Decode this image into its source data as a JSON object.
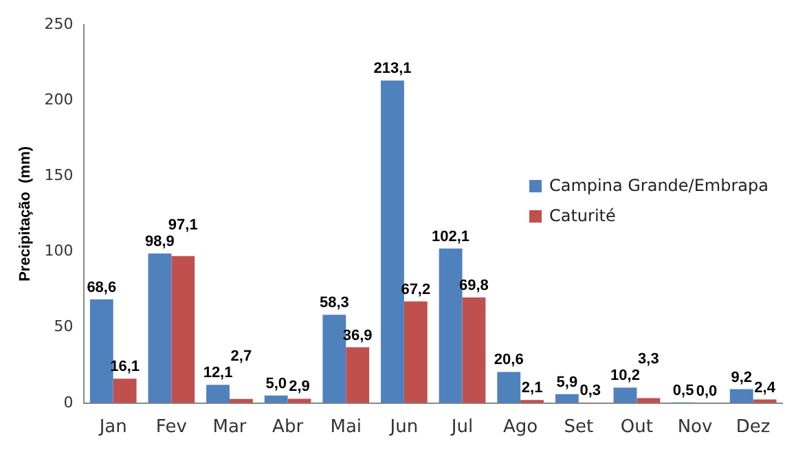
{
  "chart_data": {
    "type": "bar",
    "ylabel": "Precipitação  (mm)",
    "categories": [
      "Jan",
      "Fev",
      "Mar",
      "Abr",
      "Mai",
      "Jun",
      "Jul",
      "Ago",
      "Set",
      "Out",
      "Nov",
      "Dez"
    ],
    "series": [
      {
        "name": "Campina Grande/Embrapa",
        "color": "#4f81bd",
        "values": [
          68.6,
          98.9,
          12.1,
          5.0,
          58.3,
          213.1,
          102.1,
          20.6,
          5.9,
          10.2,
          0.5,
          9.2
        ],
        "value_labels": [
          "68,6",
          "98,9",
          "12,1",
          "5,0",
          "58,3",
          "213,1",
          "102,1",
          "20,6",
          "5,9",
          "10,2",
          "0,5",
          "9,2"
        ]
      },
      {
        "name": "Caturité",
        "color": "#c0504d",
        "values": [
          16.1,
          97.1,
          2.7,
          2.9,
          36.9,
          67.2,
          69.8,
          2.1,
          0.3,
          3.3,
          0.0,
          2.4
        ],
        "value_labels": [
          "16,1",
          "97,1",
          "2,7",
          "2,9",
          "36,9",
          "67,2",
          "69,8",
          "2,1",
          "0,3",
          "3,3",
          "0,0",
          "2,4"
        ]
      }
    ],
    "ylim": [
      0,
      250
    ],
    "yticks": [
      0,
      50,
      100,
      150,
      200,
      250
    ],
    "grid": false,
    "legend": "right"
  }
}
